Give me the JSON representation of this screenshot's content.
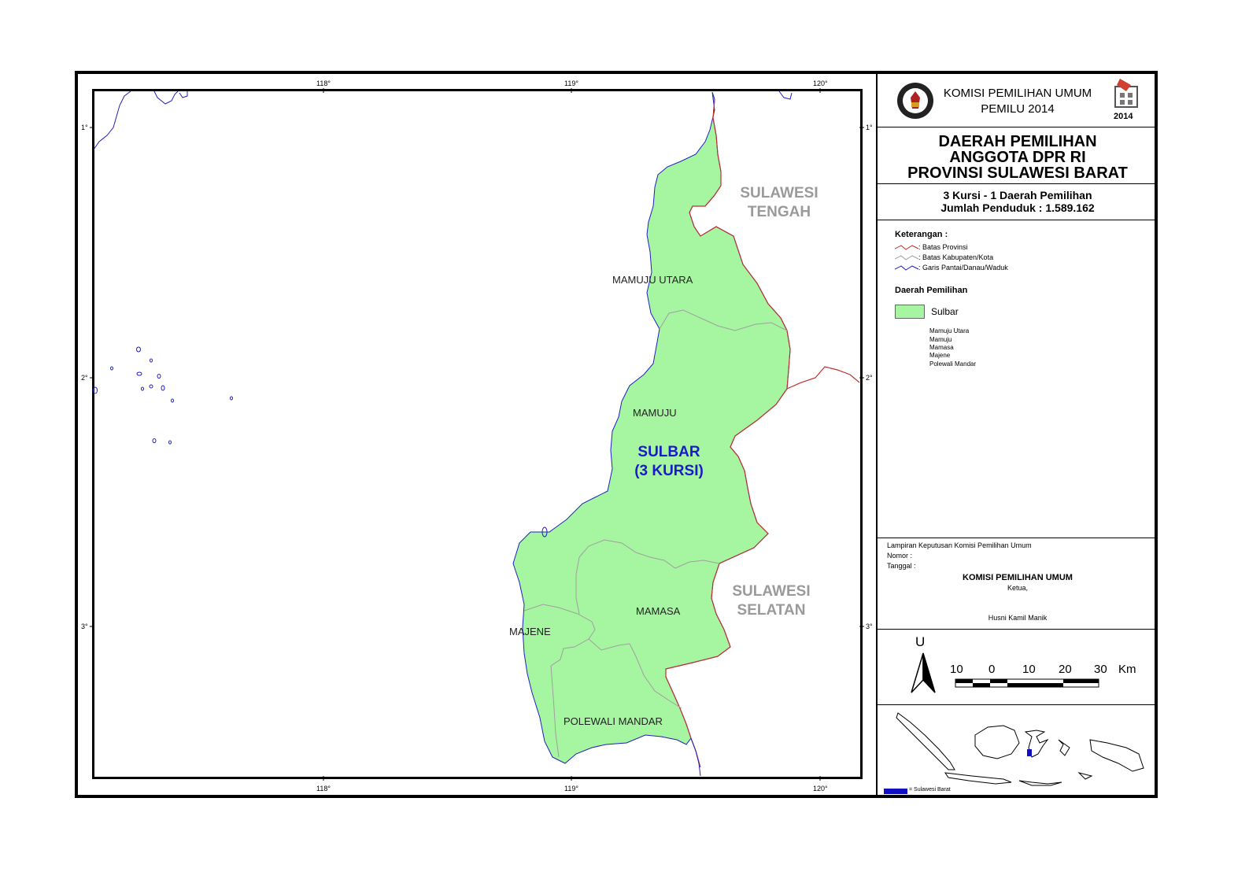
{
  "header": {
    "org_line1": "KOMISI PEMILIHAN UMUM",
    "org_line2": "PEMILU 2014",
    "logo_year": "2014"
  },
  "title": {
    "line1": "DAERAH PEMILIHAN",
    "line2": "ANGGOTA DPR RI",
    "line3": "PROVINSI SULAWESI BARAT"
  },
  "summary": {
    "line1": "3 Kursi - 1 Daerah Pemilihan",
    "line2": "Jumlah Penduduk : 1.589.162"
  },
  "legend": {
    "heading": "Keterangan :",
    "items": [
      {
        "label": ": Batas Provinsi",
        "color": "#c03030"
      },
      {
        "label": ": Batas Kabupaten/Kota",
        "color": "#a0a0a0"
      },
      {
        "label": ": Garis Pantai/Danau/Waduk",
        "color": "#2020c0"
      }
    ],
    "dapil_heading": "Daerah Pemilihan",
    "dapil_name": "Sulbar",
    "dapil_color": "#a6f5a0",
    "kabupaten": [
      "Mamuju Utara",
      "Mamuju",
      "Mamasa",
      "Majene",
      "Polewali Mandar"
    ]
  },
  "signature": {
    "line1": "Lampiran Keputusan Komisi Pemilihan Umum",
    "nomor": "Nomor     :",
    "tanggal": "Tanggal :",
    "org": "KOMISI PEMILIHAN UMUM",
    "role": "Ketua,",
    "name": "Husni Kamil Manik"
  },
  "scale": {
    "north": "U",
    "labels": [
      "10",
      "0",
      "10",
      "20",
      "30"
    ],
    "unit": "Km"
  },
  "inset": {
    "caption": "= Sulawesi Barat",
    "highlight_color": "#1010c0"
  },
  "map": {
    "longitude_ticks": [
      "118°",
      "119°",
      "120°"
    ],
    "latitude_ticks": [
      "1°",
      "2°",
      "3°"
    ],
    "regions": [
      "MAMUJU UTARA",
      "MAMUJU",
      "MAJENE",
      "MAMASA",
      "POLEWALI MANDAR"
    ],
    "neighbors": [
      {
        "line1": "SULAWESI",
        "line2": "TENGAH"
      },
      {
        "line1": "SULAWESI",
        "line2": "SELATAN"
      }
    ],
    "dapil_label": {
      "line1": "SULBAR",
      "line2": "(3 KURSI)"
    },
    "colors": {
      "fill": "#a6f5a0",
      "province_border": "#c03030",
      "district_border": "#a0a0a0",
      "coast": "#2020c0"
    }
  }
}
